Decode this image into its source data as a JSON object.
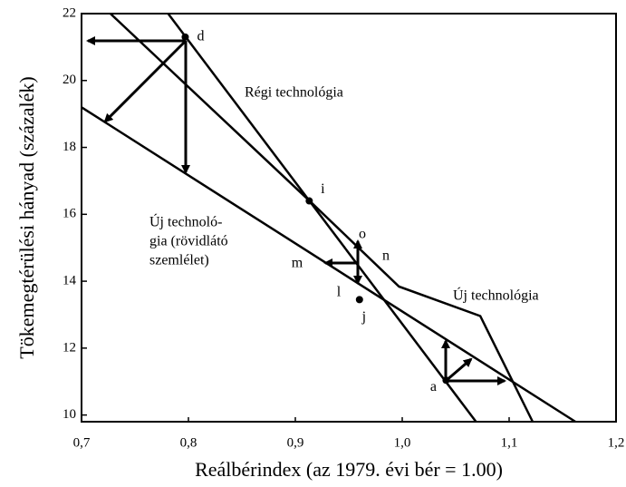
{
  "chart_data": {
    "type": "line",
    "xlabel": "Reálbérindex (az 1979. évi bér = 1.00)",
    "ylabel": "Tökemegtérülési hányad (százalék)",
    "xlim": [
      0.7,
      1.2
    ],
    "ylim": [
      9.8,
      22
    ],
    "xticks": [
      {
        "value": 0.7,
        "label": "0,7"
      },
      {
        "value": 0.8,
        "label": "0,8"
      },
      {
        "value": 0.9,
        "label": "0,9"
      },
      {
        "value": 1.0,
        "label": "1,0"
      },
      {
        "value": 1.1,
        "label": "1,1"
      },
      {
        "value": 1.2,
        "label": "1,2"
      }
    ],
    "yticks": [
      10,
      12,
      14,
      16,
      18,
      20,
      22
    ],
    "series": [
      {
        "name": "Régi technológia",
        "color": "#000000",
        "x": [
          0.781,
          1.069
        ],
        "values": [
          22,
          9.8
        ]
      },
      {
        "name": "Új technológia",
        "color": "#000000",
        "x": [
          0.727,
          0.914,
          0.997,
          1.073,
          1.122
        ],
        "values": [
          22,
          16.38,
          13.84,
          12.96,
          9.8
        ]
      },
      {
        "name": [
          "Új technoló-",
          "gia (rövidlátó",
          "szemlélet)"
        ],
        "color": "#000000",
        "x": [
          0.7,
          1.162
        ],
        "values": [
          19.2,
          9.8
        ]
      }
    ],
    "points": [
      {
        "label": "d",
        "x": 0.797,
        "y": 21.3
      },
      {
        "label": "i",
        "x": 0.913,
        "y": 16.4
      },
      {
        "label": "j",
        "x": 0.96,
        "y": 13.45
      },
      {
        "label": "a",
        "x": 1.041,
        "y": 11.04
      }
    ],
    "annotations": [
      "o",
      "n",
      "m",
      "l"
    ]
  }
}
